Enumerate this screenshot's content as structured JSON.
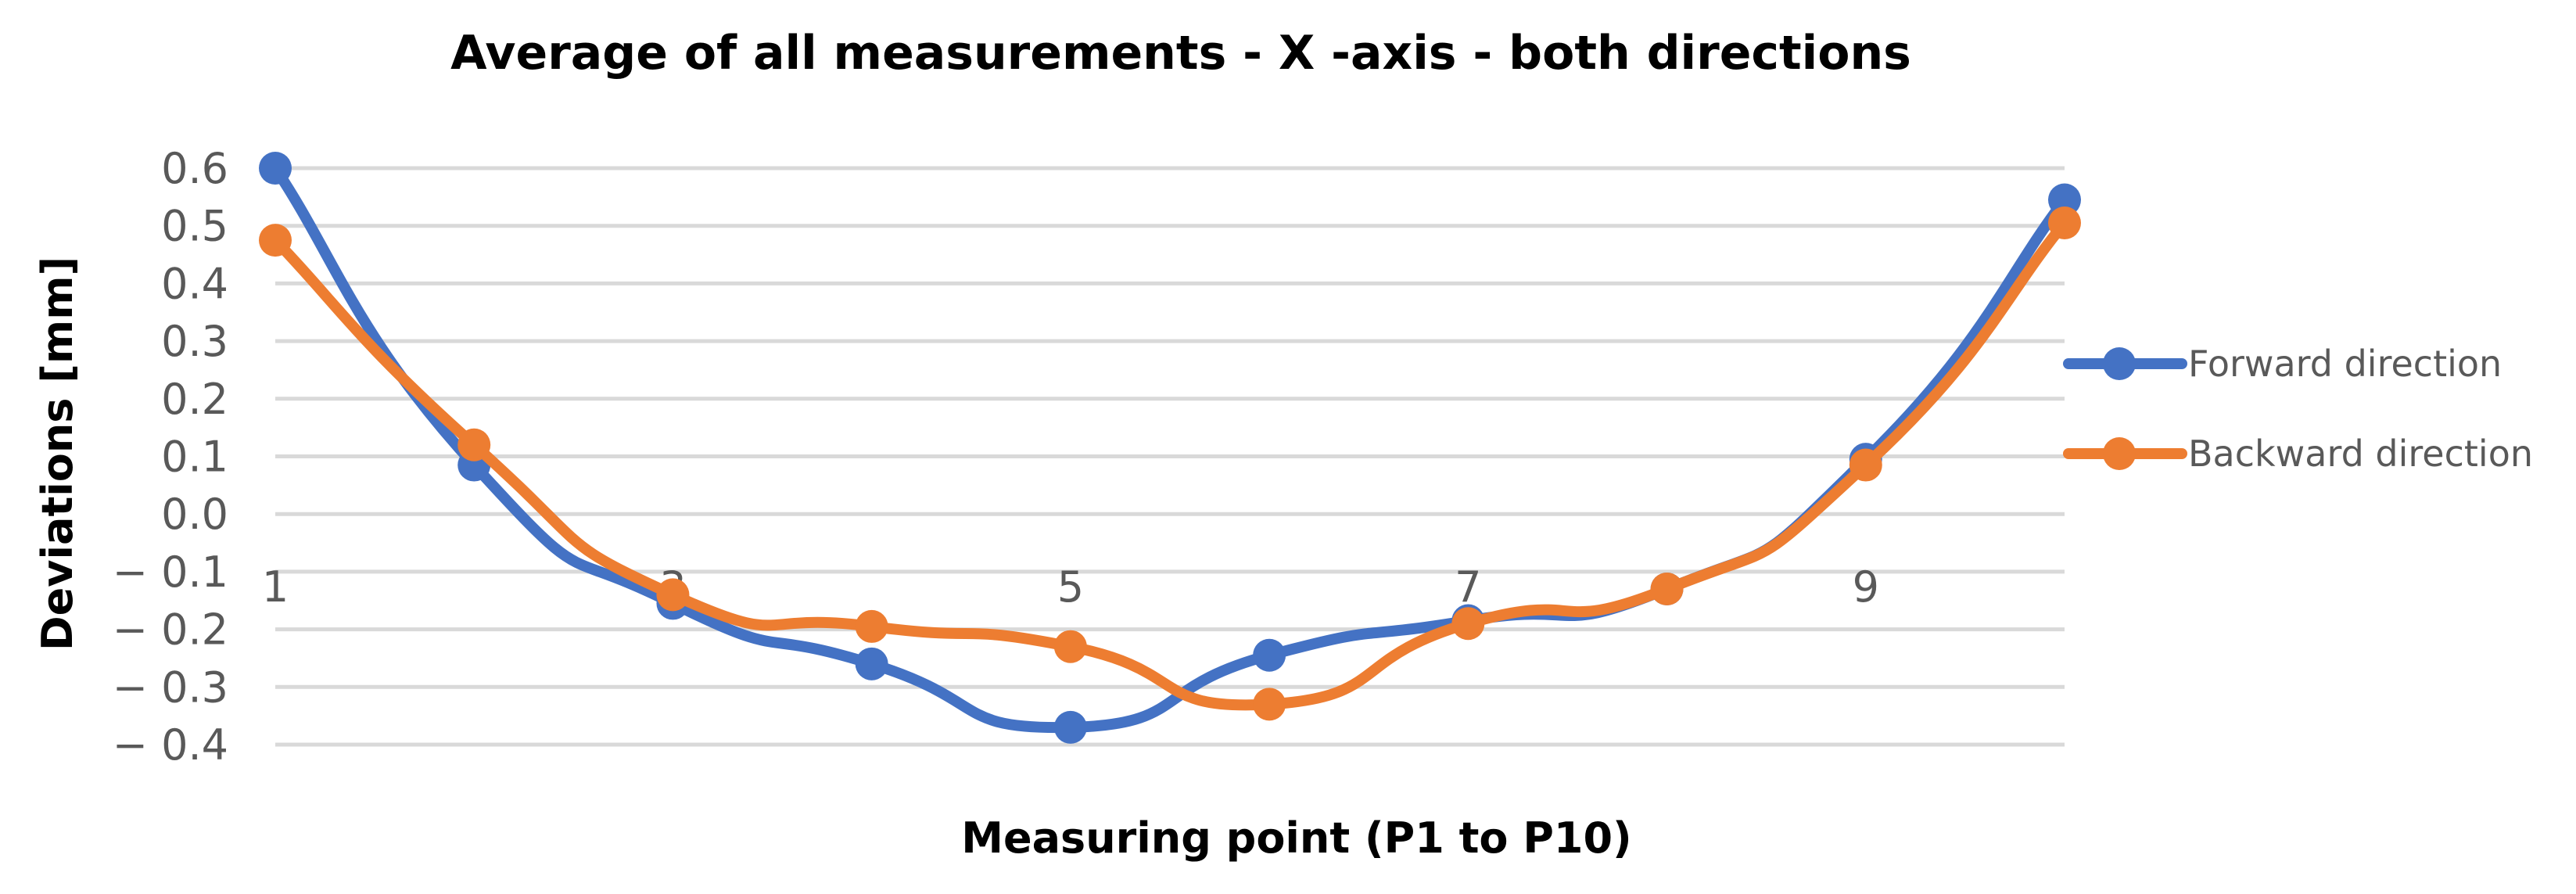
{
  "chart_data": {
    "type": "line",
    "title": "Average of all measurements - X -axis - both directions",
    "xlabel": "Measuring point (P1 to P10)",
    "ylabel": "Deviations [mm]",
    "x": [
      1,
      2,
      3,
      4,
      5,
      6,
      7,
      8,
      9,
      10
    ],
    "x_tick_labels": [
      "1",
      "3",
      "5",
      "7",
      "9"
    ],
    "x_tick_values": [
      1,
      3,
      5,
      7,
      9
    ],
    "y_ticks": [
      0.6,
      0.5,
      0.4,
      0.3,
      0.2,
      0.1,
      0.0,
      -0.1,
      -0.2,
      -0.3,
      -0.4
    ],
    "y_tick_labels": [
      "0.6",
      "0.5",
      "0.4",
      "0.3",
      "0.2",
      "0.1",
      "0.0",
      "− 0.1",
      "− 0.2",
      "− 0.3",
      "− 0.4"
    ],
    "ylim": [
      -0.4,
      0.6
    ],
    "xlim": [
      1,
      10
    ],
    "grid": true,
    "smooth": true,
    "legend_position": "right",
    "series": [
      {
        "name": "Forward direction",
        "color": "#4472C4",
        "values": [
          0.6,
          0.085,
          -0.155,
          -0.26,
          -0.37,
          -0.245,
          -0.185,
          -0.13,
          0.095,
          0.545
        ]
      },
      {
        "name": "Backward direction",
        "color": "#ED7D31",
        "values": [
          0.475,
          0.12,
          -0.14,
          -0.195,
          -0.23,
          -0.33,
          -0.19,
          -0.13,
          0.085,
          0.505
        ]
      }
    ]
  }
}
